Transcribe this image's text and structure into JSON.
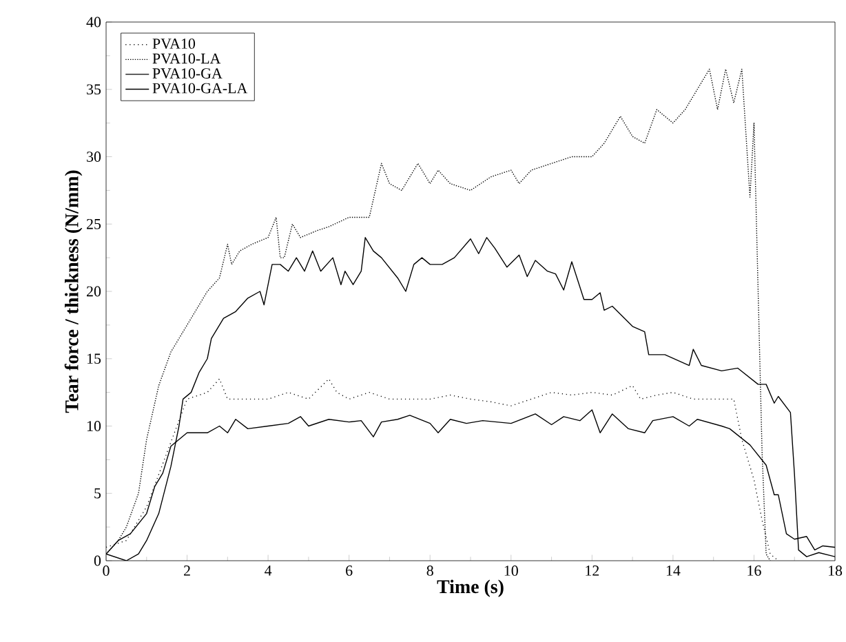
{
  "chart_data": {
    "type": "line",
    "xlabel": "Time (s)",
    "ylabel": "Tear force / thickness (N/mm)",
    "xlim": [
      0,
      18
    ],
    "ylim": [
      0,
      40
    ],
    "xticks": [
      0,
      2,
      4,
      6,
      8,
      10,
      12,
      14,
      16,
      18
    ],
    "yticks": [
      0,
      5,
      10,
      15,
      20,
      25,
      30,
      35,
      40
    ],
    "grid": false,
    "legend": "top left",
    "marker": "none",
    "series": [
      {
        "name": "PVA10",
        "color": "#000000",
        "line_style": "dotted",
        "x": [
          0,
          0.5,
          1,
          1.5,
          2,
          2.5,
          2.8,
          3,
          3.5,
          4,
          4.5,
          5,
          5.5,
          5.7,
          6,
          6.5,
          7,
          7.5,
          8,
          8.5,
          9,
          9.5,
          10,
          10.5,
          11,
          11.5,
          12,
          12.5,
          13,
          13.2,
          13.6,
          14,
          14.5,
          15,
          15.5,
          15.7,
          16,
          16.2,
          16.4,
          16.6
        ],
        "values": [
          1,
          1.5,
          4,
          8,
          12,
          12.5,
          13.5,
          12,
          12,
          12,
          12.5,
          12,
          13.5,
          12.5,
          12,
          12.5,
          12,
          12,
          12,
          12.3,
          12,
          11.8,
          11.5,
          12,
          12.5,
          12.3,
          12.5,
          12.3,
          13,
          12,
          12.3,
          12.5,
          12,
          12,
          12,
          9,
          6,
          3,
          0.5,
          0
        ]
      },
      {
        "name": "PVA10-LA",
        "color": "#000000",
        "line_style": "dashed",
        "x": [
          0,
          0.3,
          0.5,
          0.8,
          1,
          1.3,
          1.6,
          1.9,
          2.2,
          2.5,
          2.8,
          3,
          3.1,
          3.3,
          3.6,
          4,
          4.2,
          4.3,
          4.4,
          4.6,
          4.8,
          5.2,
          5.5,
          6,
          6.5,
          6.8,
          7,
          7.3,
          7.7,
          8,
          8.2,
          8.5,
          9,
          9.5,
          10,
          10.2,
          10.5,
          11,
          11.5,
          12,
          12.3,
          12.7,
          13,
          13.3,
          13.6,
          14,
          14.3,
          14.6,
          14.9,
          15.1,
          15.3,
          15.5,
          15.7,
          15.9,
          16,
          16.2,
          16.3,
          16.4
        ],
        "values": [
          0.5,
          1.5,
          2.5,
          5,
          9,
          13,
          15.5,
          17,
          18.5,
          20,
          21,
          23.5,
          22,
          23,
          23.5,
          24,
          25.5,
          22.5,
          22.5,
          25,
          24,
          24.5,
          24.8,
          25.5,
          25.5,
          29.5,
          28,
          27.5,
          29.5,
          28,
          29,
          28,
          27.5,
          28.5,
          29,
          28,
          29,
          29.5,
          30,
          30,
          31,
          33,
          31.5,
          31,
          33.5,
          32.5,
          33.5,
          35,
          36.5,
          33.5,
          36.5,
          34,
          36.5,
          27,
          32.5,
          8,
          0.5,
          0
        ]
      },
      {
        "name": "PVA10-GA",
        "color": "#000000",
        "line_style": "solid",
        "x": [
          0,
          0.3,
          0.6,
          1,
          1.2,
          1.4,
          1.6,
          1.8,
          2,
          2.5,
          2.8,
          3,
          3.2,
          3.5,
          4,
          4.5,
          4.8,
          5,
          5.5,
          6,
          6.3,
          6.6,
          6.8,
          7.2,
          7.5,
          8,
          8.2,
          8.5,
          8.9,
          9.3,
          10,
          10.6,
          11,
          11.3,
          11.7,
          12,
          12.2,
          12.5,
          12.9,
          13.3,
          13.5,
          14,
          14.4,
          14.6,
          15.2,
          15.4,
          15.9,
          16.3,
          16.5,
          16.6,
          16.8,
          17,
          17.3,
          17.5,
          17.7,
          18
        ],
        "values": [
          0.5,
          1.5,
          2,
          3.5,
          5.5,
          6.5,
          8.5,
          9,
          9.5,
          9.5,
          10,
          9.5,
          10.5,
          9.8,
          10,
          10.2,
          10.7,
          10,
          10.5,
          10.3,
          10.4,
          9.2,
          10.3,
          10.5,
          10.8,
          10.2,
          9.5,
          10.5,
          10.2,
          10.4,
          10.2,
          10.9,
          10.1,
          10.7,
          10.4,
          11.2,
          9.5,
          10.9,
          9.8,
          9.5,
          10.4,
          10.7,
          10,
          10.5,
          10,
          9.8,
          8.6,
          7.1,
          4.9,
          4.9,
          2,
          1.6,
          1.8,
          0.8,
          1.1,
          1
        ]
      },
      {
        "name": "PVA10-GA-LA",
        "color": "#000000",
        "line_style": "solid",
        "x": [
          0,
          0.5,
          0.8,
          1,
          1.3,
          1.6,
          1.8,
          1.9,
          2.1,
          2.3,
          2.5,
          2.6,
          2.9,
          3.2,
          3.5,
          3.8,
          3.9,
          4.1,
          4.3,
          4.5,
          4.7,
          4.9,
          5.1,
          5.3,
          5.6,
          5.8,
          5.9,
          6.1,
          6.3,
          6.4,
          6.6,
          6.8,
          7.2,
          7.4,
          7.6,
          7.8,
          8,
          8.3,
          8.6,
          9,
          9.2,
          9.4,
          9.6,
          9.9,
          10.2,
          10.4,
          10.6,
          10.9,
          11.1,
          11.3,
          11.5,
          11.8,
          12,
          12.2,
          12.3,
          12.5,
          13,
          13.3,
          13.4,
          13.8,
          14.4,
          14.5,
          14.7,
          15.2,
          15.6,
          16.1,
          16.3,
          16.5,
          16.6,
          16.9,
          17,
          17.1,
          17.3,
          17.6,
          18
        ],
        "values": [
          0.5,
          0,
          0.5,
          1.5,
          3.5,
          7,
          10,
          12,
          12.5,
          14,
          15,
          16.5,
          18,
          18.5,
          19.5,
          20,
          19,
          22,
          22,
          21.5,
          22.5,
          21.5,
          23,
          21.5,
          22.5,
          20.5,
          21.5,
          20.5,
          21.5,
          24,
          23,
          22.5,
          21,
          20,
          22,
          22.5,
          22,
          22,
          22.5,
          23.9,
          22.8,
          24,
          23.2,
          21.8,
          22.7,
          21.1,
          22.3,
          21.5,
          21.3,
          20.1,
          22.2,
          19.4,
          19.4,
          19.9,
          18.6,
          18.9,
          17.4,
          17,
          15.3,
          15.3,
          14.5,
          15.7,
          14.5,
          14.1,
          14.3,
          13.1,
          13.1,
          11.7,
          12.2,
          11,
          6.4,
          0.8,
          0.3,
          0.6,
          0.3
        ]
      }
    ]
  }
}
